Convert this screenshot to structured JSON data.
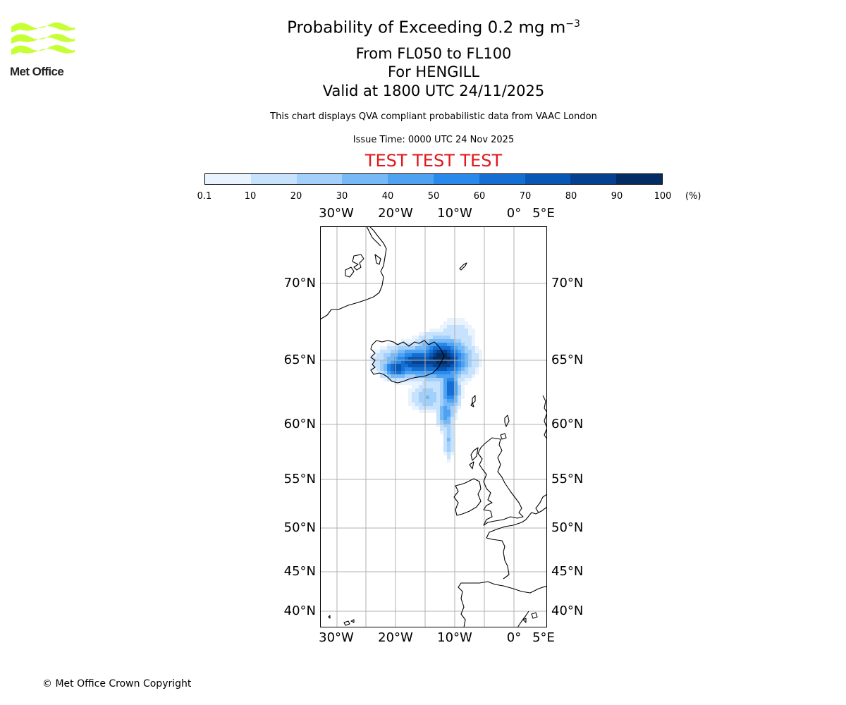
{
  "logo": {
    "text": "Met Office",
    "color": "#c6ff34",
    "icon": "met-office-waves-logo"
  },
  "header": {
    "title_main": "Probability of Exceeding 0.2 mg m",
    "title_sup": "−3",
    "subtitle_levels": "From FL050 to FL100",
    "subtitle_volcano": "For HENGILL",
    "subtitle_valid": "Valid at 1800 UTC 24/11/2025",
    "description": "This chart displays QVA compliant probabilistic data from VAAC London",
    "issue_time": "Issue Time: 0000 UTC 24 Nov 2025",
    "test_banner": "TEST TEST TEST",
    "test_color": "#e0161c"
  },
  "colorbar": {
    "ticks": [
      "0.1",
      "10",
      "20",
      "30",
      "40",
      "50",
      "60",
      "70",
      "80",
      "90",
      "100"
    ],
    "unit": "(%)",
    "colors": [
      "#e8f3fe",
      "#c6e2fc",
      "#a3d0fa",
      "#76b9f6",
      "#4ea2f1",
      "#2a8aeb",
      "#156fd3",
      "#0857b5",
      "#054190",
      "#032c63"
    ]
  },
  "map": {
    "lon_labels": [
      "30°W",
      "20°W",
      "10°W",
      "0°",
      "5°E"
    ],
    "lat_labels": [
      "70°N",
      "65°N",
      "60°N",
      "55°N",
      "50°N",
      "45°N",
      "40°N"
    ],
    "gridline_color": "#b0b0b0",
    "coast_color": "#000000"
  },
  "footer": {
    "copyright": "© Met Office Crown Copyright"
  }
}
